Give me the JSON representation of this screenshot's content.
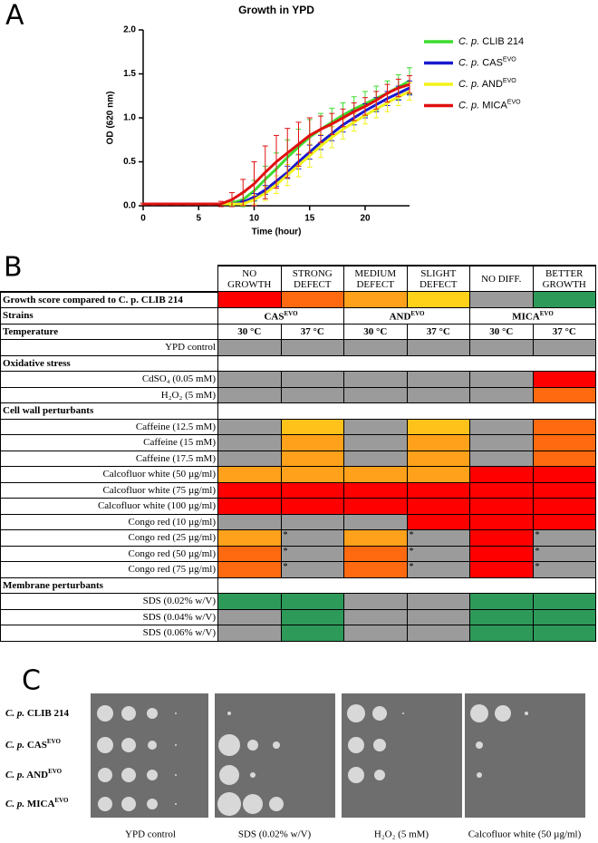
{
  "panel_labels": [
    "A",
    "B",
    "C"
  ],
  "chart_data": {
    "type": "line",
    "title": "Growth in YPD",
    "x_label": "Time (hour)",
    "y_label": "OD (620 nm)",
    "x": [
      0,
      1,
      2,
      3,
      4,
      5,
      6,
      7,
      8,
      9,
      10,
      11,
      12,
      13,
      14,
      15,
      16,
      17,
      18,
      19,
      20,
      21,
      22,
      23,
      24
    ],
    "xlim": [
      0,
      24
    ],
    "xticks": [
      0,
      5,
      10,
      15,
      20
    ],
    "ylim": [
      0,
      2
    ],
    "yticks": [
      {
        "value": 0,
        "label": "0.0"
      },
      {
        "value": 0.5,
        "label": "0.5"
      },
      {
        "value": 1,
        "label": "1.0"
      },
      {
        "value": 1.5,
        "label": "1.5"
      },
      {
        "value": 2,
        "label": "2.0"
      }
    ],
    "legend": "upper right",
    "series": [
      {
        "prefix": "C. p.",
        "name": "CLIB 214",
        "color": "#3ddc2e",
        "values": [
          0.02,
          0.02,
          0.02,
          0.02,
          0.02,
          0.02,
          0.02,
          0.02,
          0.03,
          0.07,
          0.17,
          0.3,
          0.42,
          0.55,
          0.67,
          0.78,
          0.87,
          0.95,
          1.03,
          1.1,
          1.16,
          1.22,
          1.28,
          1.35,
          1.42
        ],
        "errors": [
          0.01,
          0.01,
          0.01,
          0.01,
          0.01,
          0.01,
          0.01,
          0.01,
          0.03,
          0.08,
          0.12,
          0.15,
          0.18,
          0.2,
          0.2,
          0.2,
          0.18,
          0.16,
          0.14,
          0.14,
          0.14,
          0.14,
          0.14,
          0.14,
          0.15
        ]
      },
      {
        "prefix": "C. p.",
        "name": "CAS",
        "sup": "EVO",
        "color": "#1a1acd",
        "values": [
          0.02,
          0.02,
          0.02,
          0.02,
          0.02,
          0.02,
          0.02,
          0.02,
          0.02,
          0.04,
          0.1,
          0.18,
          0.28,
          0.38,
          0.5,
          0.61,
          0.72,
          0.82,
          0.92,
          1.0,
          1.08,
          1.15,
          1.22,
          1.28,
          1.34
        ],
        "errors": [
          0.01,
          0.01,
          0.01,
          0.01,
          0.01,
          0.01,
          0.01,
          0.01,
          0.01,
          0.02,
          0.04,
          0.05,
          0.06,
          0.07,
          0.08,
          0.08,
          0.08,
          0.08,
          0.08,
          0.08,
          0.08,
          0.08,
          0.08,
          0.08,
          0.08
        ]
      },
      {
        "prefix": "C. p.",
        "name": "AND",
        "sup": "EVO",
        "color": "#f2f21a",
        "values": [
          0.02,
          0.02,
          0.02,
          0.02,
          0.02,
          0.02,
          0.02,
          0.02,
          0.02,
          0.02,
          0.07,
          0.14,
          0.24,
          0.35,
          0.46,
          0.57,
          0.68,
          0.78,
          0.87,
          0.95,
          1.03,
          1.1,
          1.17,
          1.24,
          1.3
        ],
        "errors": [
          0.01,
          0.01,
          0.01,
          0.01,
          0.01,
          0.01,
          0.01,
          0.01,
          0.01,
          0.01,
          0.05,
          0.08,
          0.1,
          0.12,
          0.13,
          0.13,
          0.13,
          0.12,
          0.11,
          0.1,
          0.1,
          0.1,
          0.1,
          0.1,
          0.1
        ]
      },
      {
        "prefix": "C. p.",
        "name": "MICA",
        "sup": "EVO",
        "color": "#e01010",
        "values": [
          0.02,
          0.02,
          0.02,
          0.02,
          0.02,
          0.02,
          0.02,
          0.02,
          0.07,
          0.15,
          0.25,
          0.38,
          0.5,
          0.6,
          0.7,
          0.8,
          0.87,
          0.93,
          1.0,
          1.07,
          1.13,
          1.2,
          1.28,
          1.34,
          1.38
        ],
        "errors": [
          0.01,
          0.01,
          0.01,
          0.01,
          0.01,
          0.01,
          0.01,
          0.03,
          0.08,
          0.15,
          0.25,
          0.3,
          0.3,
          0.28,
          0.25,
          0.2,
          0.15,
          0.12,
          0.1,
          0.1,
          0.1,
          0.1,
          0.1,
          0.1,
          0.1
        ]
      }
    ]
  },
  "table": {
    "score_header": [
      "NO GROWTH",
      "STRONG DEFECT",
      "MEDIUM DEFECT",
      "SLIGHT DEFECT",
      "NO DIFF.",
      "BETTER GROWTH"
    ],
    "score_colors": [
      "#ff0000",
      "#ff6a10",
      "#ffa11a",
      "#ffd21a",
      "#9b9b9b",
      "#2e9a5a"
    ],
    "score_label": "Growth score compared to C. p. CLIB 214",
    "strains_label": "Strains",
    "strains": [
      {
        "name": "CAS",
        "sup": "EVO"
      },
      {
        "name": "AND",
        "sup": "EVO"
      },
      {
        "name": "MICA",
        "sup": "EVO"
      }
    ],
    "temperature_label": "Temperature",
    "temperatures": [
      "30 °C",
      "37 °C",
      "30 °C",
      "37 °C",
      "30 °C",
      "37 °C"
    ],
    "rows": [
      {
        "label": "YPD control",
        "cells": [
          "#9b9b9b",
          "#9b9b9b",
          "#9b9b9b",
          "#9b9b9b",
          "#9b9b9b",
          "#9b9b9b"
        ]
      },
      {
        "section": "Oxidative stress"
      },
      {
        "label": "CdSO₄ (0.05 mM)",
        "cells": [
          "#9b9b9b",
          "#9b9b9b",
          "#9b9b9b",
          "#9b9b9b",
          "#9b9b9b",
          "#ff0000"
        ]
      },
      {
        "label": "H₂O₂ (5 mM)",
        "cells": [
          "#9b9b9b",
          "#9b9b9b",
          "#9b9b9b",
          "#9b9b9b",
          "#9b9b9b",
          "#ff6a10"
        ]
      },
      {
        "section": "Cell wall perturbants"
      },
      {
        "label": "Caffeine (12.5 mM)",
        "cells": [
          "#9b9b9b",
          "#ffc21a",
          "#9b9b9b",
          "#ffc21a",
          "#9b9b9b",
          "#ff6a10"
        ]
      },
      {
        "label": "Caffeine (15 mM)",
        "cells": [
          "#9b9b9b",
          "#ffa11a",
          "#9b9b9b",
          "#ffa11a",
          "#9b9b9b",
          "#ff6a10"
        ]
      },
      {
        "label": "Caffeine (17.5 mM)",
        "cells": [
          "#9b9b9b",
          "#ffa11a",
          "#9b9b9b",
          "#ffa11a",
          "#9b9b9b",
          "#ff6a10"
        ]
      },
      {
        "label": "Calcofluor white (50 µg/ml)",
        "cells": [
          "#ffa11a",
          "#ffa11a",
          "#ffa11a",
          "#ffa11a",
          "#ff0000",
          "#ff0000"
        ]
      },
      {
        "label": "Calcofluor white (75 µg/ml)",
        "cells": [
          "#ff0000",
          "#ff0000",
          "#ff0000",
          "#ff0000",
          "#ff0000",
          "#ff0000"
        ]
      },
      {
        "label": "Calcofluor white (100 µg/ml)",
        "cells": [
          "#ff0000",
          "#ff0000",
          "#ff0000",
          "#ff0000",
          "#ff0000",
          "#ff0000"
        ]
      },
      {
        "label": "Congo red (10 µg/ml)",
        "cells": [
          "#9b9b9b",
          "#9b9b9b",
          "#9b9b9b",
          "#ff0000",
          "#ff0000",
          "#ff0000"
        ]
      },
      {
        "label": "Congo red (25 µg/ml)",
        "cells": [
          "#ffa11a",
          {
            "color": "#9b9b9b",
            "note": "*"
          },
          "#ffa11a",
          {
            "color": "#9b9b9b",
            "note": "*"
          },
          "#ff0000",
          {
            "color": "#9b9b9b",
            "note": "*"
          }
        ]
      },
      {
        "label": "Congo red (50 µg/ml)",
        "cells": [
          "#ff6a10",
          {
            "color": "#9b9b9b",
            "note": "*"
          },
          "#ff6a10",
          {
            "color": "#9b9b9b",
            "note": "*"
          },
          "#ff0000",
          {
            "color": "#9b9b9b",
            "note": "*"
          }
        ]
      },
      {
        "label": "Congo red (75 µg/ml)",
        "cells": [
          "#ff6a10",
          {
            "color": "#9b9b9b",
            "note": "*"
          },
          "#ff6a10",
          {
            "color": "#9b9b9b",
            "note": "*"
          },
          "#ff0000",
          {
            "color": "#9b9b9b",
            "note": "*"
          }
        ]
      },
      {
        "section": "Membrane perturbants"
      },
      {
        "label": "SDS (0.02% w/V)",
        "cells": [
          "#2e9a5a",
          "#2e9a5a",
          "#9b9b9b",
          "#9b9b9b",
          "#2e9a5a",
          "#2e9a5a"
        ]
      },
      {
        "label": "SDS (0.04% w/V)",
        "cells": [
          "#9b9b9b",
          "#2e9a5a",
          "#9b9b9b",
          "#9b9b9b",
          "#2e9a5a",
          "#2e9a5a"
        ]
      },
      {
        "label": "SDS (0.06% w/V)",
        "cells": [
          "#9b9b9b",
          "#2e9a5a",
          "#9b9b9b",
          "#9b9b9b",
          "#2e9a5a",
          "#2e9a5a"
        ]
      }
    ]
  },
  "plates": {
    "strains": [
      {
        "prefix": "C. p.",
        "name": "CLIB 214"
      },
      {
        "prefix": "C. p.",
        "name": "CAS",
        "sup": "EVO"
      },
      {
        "prefix": "C. p.",
        "name": "AND",
        "sup": "EVO"
      },
      {
        "prefix": "C. p.",
        "name": "MICA",
        "sup": "EVO"
      }
    ],
    "conditions": [
      "YPD control",
      "SDS (0.02% w/V)",
      "H₂O₂ (5 mM)",
      "Calcofluor white (50 µg/ml)"
    ]
  }
}
